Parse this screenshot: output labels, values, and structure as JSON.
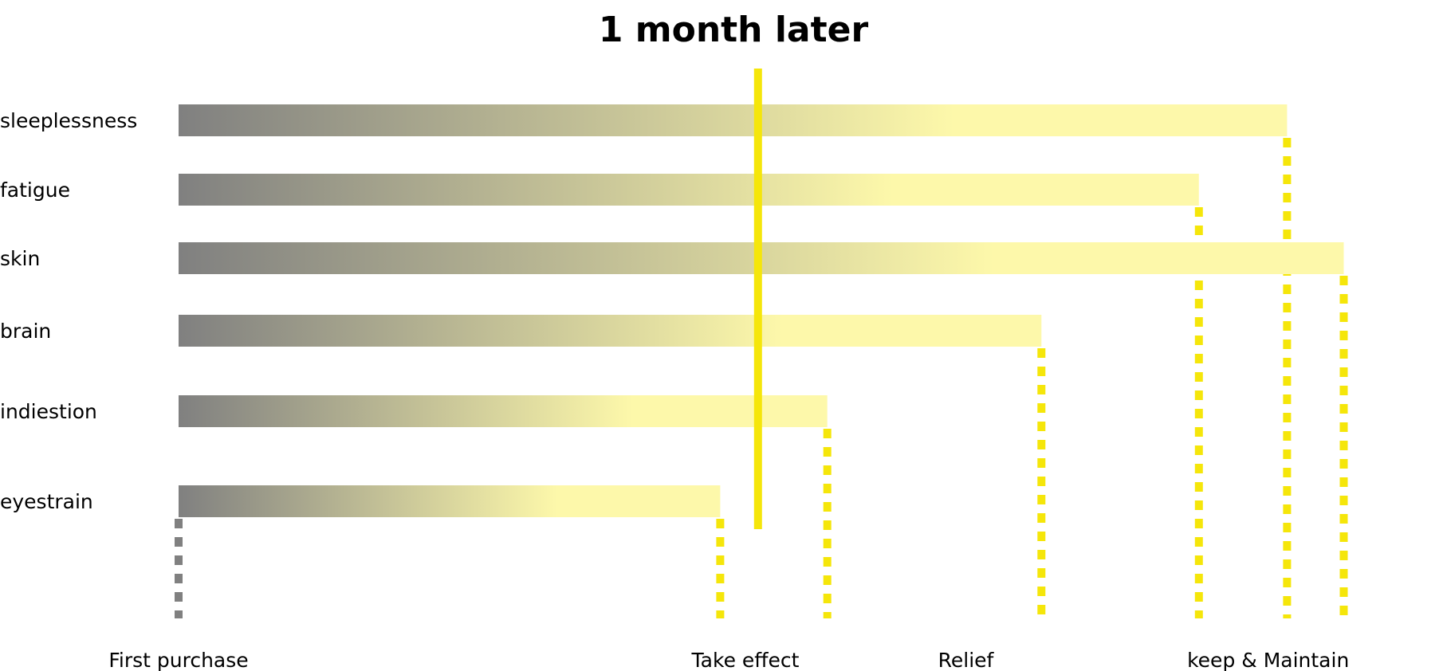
{
  "chart_data": {
    "type": "bar",
    "orientation": "horizontal",
    "title": "1 month later",
    "categories": [
      "sleeplessness",
      "fatigue",
      "skin",
      "brain",
      "indiestion",
      "eyestrain"
    ],
    "values": [
      1.76,
      1.62,
      1.85,
      1.37,
      1.03,
      0.86
    ],
    "marker": {
      "label": "1 month later",
      "value": 0.92
    },
    "milestones": [
      {
        "label": "First purchase",
        "value": 0
      },
      {
        "label": "Take effect",
        "value": 0.9
      },
      {
        "label": "Relief",
        "value": 1.25
      },
      {
        "label": "keep & Maintain",
        "value": 1.73
      }
    ],
    "xlim": [
      0,
      2.0
    ],
    "grid": false,
    "legend": "none"
  },
  "colors": {
    "start": "#808080",
    "end": "#fdf8aa",
    "marker": "#f5e60a",
    "dash_start": "#808080"
  }
}
